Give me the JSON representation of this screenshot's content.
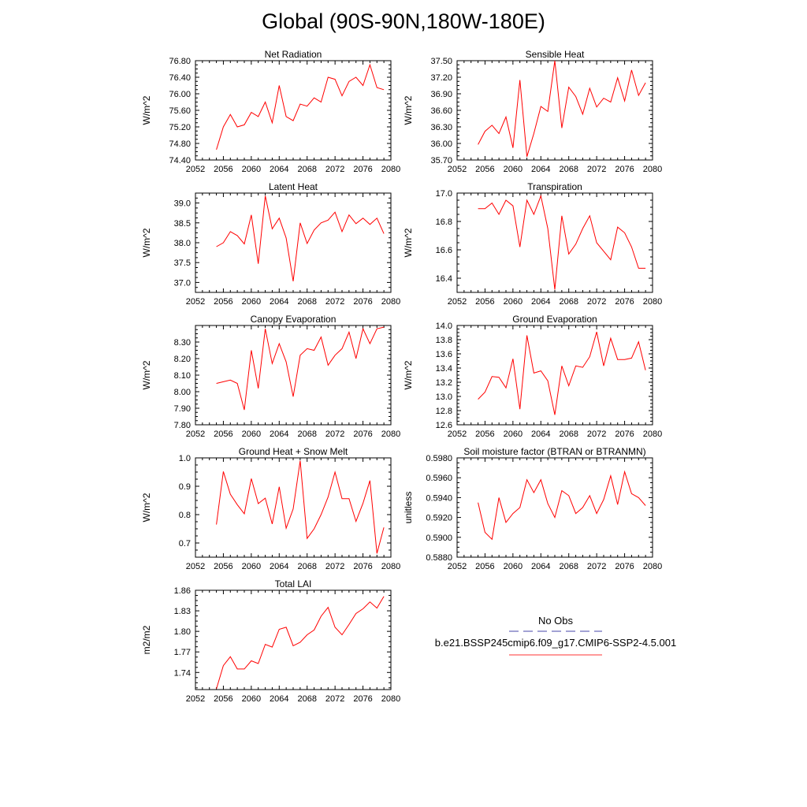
{
  "title": "Global (90S-90N,180W-180E)",
  "legend": {
    "obs_label": "No Obs",
    "obs_color": "#4444aa",
    "case_label": "b.e21.BSSP245cmip6.f09_g17.CMIP6-SSP2-4.5.001",
    "case_color": "#ff3333"
  },
  "line_color": "#ff0000",
  "chart_data": [
    {
      "type": "line",
      "title": "Net Radiation",
      "ylabel": "W/m^2",
      "xlim": [
        2052,
        2080
      ],
      "ylim": [
        74.4,
        76.8
      ],
      "xticks": [
        2052,
        2056,
        2060,
        2064,
        2068,
        2072,
        2076,
        2080
      ],
      "yticks": [
        "74.40",
        "74.80",
        "75.20",
        "75.60",
        "76.00",
        "76.40",
        "76.80"
      ],
      "x": [
        2055,
        2056,
        2057,
        2058,
        2059,
        2060,
        2061,
        2062,
        2063,
        2064,
        2065,
        2066,
        2067,
        2068,
        2069,
        2070,
        2071,
        2072,
        2073,
        2074,
        2075,
        2076,
        2077,
        2078,
        2079
      ],
      "y": [
        74.65,
        75.2,
        75.5,
        75.2,
        75.25,
        75.55,
        75.45,
        75.8,
        75.3,
        76.2,
        75.45,
        75.35,
        75.75,
        75.7,
        75.9,
        75.8,
        76.4,
        76.35,
        75.95,
        76.3,
        76.4,
        76.2,
        76.7,
        76.15,
        76.1
      ]
    },
    {
      "type": "line",
      "title": "Sensible Heat",
      "ylabel": "W/m^2",
      "xlim": [
        2052,
        2080
      ],
      "ylim": [
        35.7,
        37.5
      ],
      "xticks": [
        2052,
        2056,
        2060,
        2064,
        2068,
        2072,
        2076,
        2080
      ],
      "yticks": [
        "35.70",
        "36.00",
        "36.30",
        "36.60",
        "36.90",
        "37.20",
        "37.50"
      ],
      "x": [
        2055,
        2056,
        2057,
        2058,
        2059,
        2060,
        2061,
        2062,
        2063,
        2064,
        2065,
        2066,
        2067,
        2068,
        2069,
        2070,
        2071,
        2072,
        2073,
        2074,
        2075,
        2076,
        2077,
        2078,
        2079
      ],
      "y": [
        35.98,
        36.22,
        36.33,
        36.18,
        36.48,
        35.92,
        37.15,
        35.76,
        36.18,
        36.67,
        36.58,
        37.5,
        36.28,
        37.02,
        36.85,
        36.53,
        37.0,
        36.66,
        36.82,
        36.75,
        37.19,
        36.77,
        37.33,
        36.87,
        37.1
      ]
    },
    {
      "type": "line",
      "title": "Latent Heat",
      "ylabel": "W/m^2",
      "xlim": [
        2052,
        2080
      ],
      "ylim": [
        36.75,
        39.25
      ],
      "xticks": [
        2052,
        2056,
        2060,
        2064,
        2068,
        2072,
        2076,
        2080
      ],
      "yticks": [
        "37.0",
        "37.5",
        "38.0",
        "38.5",
        "39.0"
      ],
      "x": [
        2055,
        2056,
        2057,
        2058,
        2059,
        2060,
        2061,
        2062,
        2063,
        2064,
        2065,
        2066,
        2067,
        2068,
        2069,
        2070,
        2071,
        2072,
        2073,
        2074,
        2075,
        2076,
        2077,
        2078,
        2079
      ],
      "y": [
        37.9,
        38.0,
        38.28,
        38.18,
        37.97,
        38.7,
        37.47,
        39.18,
        38.35,
        38.62,
        38.12,
        37.03,
        38.5,
        37.98,
        38.32,
        38.5,
        38.57,
        38.77,
        38.28,
        38.7,
        38.48,
        38.62,
        38.46,
        38.62,
        38.23
      ]
    },
    {
      "type": "line",
      "title": "Transpiration",
      "ylabel": "W/m^2",
      "xlim": [
        2052,
        2080
      ],
      "ylim": [
        16.3,
        17.0
      ],
      "xticks": [
        2052,
        2056,
        2060,
        2064,
        2068,
        2072,
        2076,
        2080
      ],
      "yticks": [
        "16.4",
        "16.6",
        "16.8",
        "17.0"
      ],
      "x": [
        2055,
        2056,
        2057,
        2058,
        2059,
        2060,
        2061,
        2062,
        2063,
        2064,
        2065,
        2066,
        2067,
        2068,
        2069,
        2070,
        2071,
        2072,
        2073,
        2074,
        2075,
        2076,
        2077,
        2078,
        2079
      ],
      "y": [
        16.89,
        16.89,
        16.93,
        16.85,
        16.95,
        16.91,
        16.62,
        16.95,
        16.85,
        16.98,
        16.75,
        16.32,
        16.84,
        16.57,
        16.64,
        16.75,
        16.84,
        16.65,
        16.59,
        16.53,
        16.76,
        16.72,
        16.62,
        16.47,
        16.47
      ]
    },
    {
      "type": "line",
      "title": "Canopy Evaporation",
      "ylabel": "W/m^2",
      "xlim": [
        2052,
        2080
      ],
      "ylim": [
        7.8,
        8.4
      ],
      "xticks": [
        2052,
        2056,
        2060,
        2064,
        2068,
        2072,
        2076,
        2080
      ],
      "yticks": [
        "7.80",
        "7.90",
        "8.00",
        "8.10",
        "8.20",
        "8.30"
      ],
      "x": [
        2055,
        2056,
        2057,
        2058,
        2059,
        2060,
        2061,
        2062,
        2063,
        2064,
        2065,
        2066,
        2067,
        2068,
        2069,
        2070,
        2071,
        2072,
        2073,
        2074,
        2075,
        2076,
        2077,
        2078,
        2079
      ],
      "y": [
        8.05,
        8.06,
        8.07,
        8.05,
        7.89,
        8.25,
        8.02,
        8.38,
        8.17,
        8.29,
        8.18,
        7.97,
        8.22,
        8.26,
        8.25,
        8.33,
        8.16,
        8.22,
        8.26,
        8.36,
        8.2,
        8.38,
        8.29,
        8.38,
        8.39
      ]
    },
    {
      "type": "line",
      "title": "Ground Evaporation",
      "ylabel": "W/m^2",
      "xlim": [
        2052,
        2080
      ],
      "ylim": [
        12.6,
        14.0
      ],
      "xticks": [
        2052,
        2056,
        2060,
        2064,
        2068,
        2072,
        2076,
        2080
      ],
      "yticks": [
        "12.6",
        "12.8",
        "13.0",
        "13.2",
        "13.4",
        "13.6",
        "13.8",
        "14.0"
      ],
      "x": [
        2055,
        2056,
        2057,
        2058,
        2059,
        2060,
        2061,
        2062,
        2063,
        2064,
        2065,
        2066,
        2067,
        2068,
        2069,
        2070,
        2071,
        2072,
        2073,
        2074,
        2075,
        2076,
        2077,
        2078,
        2079
      ],
      "y": [
        12.96,
        13.06,
        13.28,
        13.27,
        13.12,
        13.53,
        12.82,
        13.86,
        13.33,
        13.36,
        13.22,
        12.74,
        13.43,
        13.15,
        13.43,
        13.41,
        13.56,
        13.91,
        13.43,
        13.82,
        13.52,
        13.52,
        13.54,
        13.77,
        13.37
      ]
    },
    {
      "type": "line",
      "title": "Ground Heat + Snow Melt",
      "ylabel": "W/m^2",
      "xlim": [
        2052,
        2080
      ],
      "ylim": [
        0.65,
        1.0
      ],
      "xticks": [
        2052,
        2056,
        2060,
        2064,
        2068,
        2072,
        2076,
        2080
      ],
      "yticks": [
        "0.7",
        "0.8",
        "0.9",
        "1.0"
      ],
      "x": [
        2055,
        2056,
        2057,
        2058,
        2059,
        2060,
        2061,
        2062,
        2063,
        2064,
        2065,
        2066,
        2067,
        2068,
        2069,
        2070,
        2071,
        2072,
        2073,
        2074,
        2075,
        2076,
        2077,
        2078,
        2079
      ],
      "y": [
        0.765,
        0.952,
        0.872,
        0.835,
        0.803,
        0.927,
        0.839,
        0.858,
        0.767,
        0.898,
        0.752,
        0.82,
        0.99,
        0.716,
        0.75,
        0.8,
        0.862,
        0.95,
        0.856,
        0.856,
        0.776,
        0.84,
        0.92,
        0.663,
        0.755
      ]
    },
    {
      "type": "line",
      "title": "Soil moisture factor (BTRAN or BTRANMN)",
      "ylabel": "unitless",
      "xlim": [
        2052,
        2080
      ],
      "ylim": [
        0.588,
        0.598
      ],
      "xticks": [
        2052,
        2056,
        2060,
        2064,
        2068,
        2072,
        2076,
        2080
      ],
      "yticks": [
        "0.5880",
        "0.5900",
        "0.5920",
        "0.5940",
        "0.5960",
        "0.5980"
      ],
      "x": [
        2055,
        2056,
        2057,
        2058,
        2059,
        2060,
        2061,
        2062,
        2063,
        2064,
        2065,
        2066,
        2067,
        2068,
        2069,
        2070,
        2071,
        2072,
        2073,
        2074,
        2075,
        2076,
        2077,
        2078,
        2079
      ],
      "y": [
        0.5935,
        0.5905,
        0.5898,
        0.594,
        0.5915,
        0.5924,
        0.593,
        0.5958,
        0.5945,
        0.5958,
        0.5934,
        0.592,
        0.5947,
        0.5942,
        0.5924,
        0.593,
        0.5942,
        0.5924,
        0.5938,
        0.5962,
        0.5933,
        0.5966,
        0.5944,
        0.594,
        0.5932
      ]
    },
    {
      "type": "line",
      "title": "Total LAI",
      "ylabel": "m2/m2",
      "xlim": [
        2052,
        2080
      ],
      "ylim": [
        1.715,
        1.86
      ],
      "xticks": [
        2052,
        2056,
        2060,
        2064,
        2068,
        2072,
        2076,
        2080
      ],
      "yticks": [
        "1.74",
        "1.77",
        "1.80",
        "1.83",
        "1.86"
      ],
      "x": [
        2055,
        2056,
        2057,
        2058,
        2059,
        2060,
        2061,
        2062,
        2063,
        2064,
        2065,
        2066,
        2067,
        2068,
        2069,
        2070,
        2071,
        2072,
        2073,
        2074,
        2075,
        2076,
        2077,
        2078,
        2079
      ],
      "y": [
        1.716,
        1.75,
        1.763,
        1.745,
        1.745,
        1.757,
        1.753,
        1.781,
        1.777,
        1.803,
        1.806,
        1.779,
        1.784,
        1.795,
        1.802,
        1.822,
        1.835,
        1.806,
        1.795,
        1.81,
        1.826,
        1.833,
        1.843,
        1.834,
        1.851
      ]
    }
  ]
}
